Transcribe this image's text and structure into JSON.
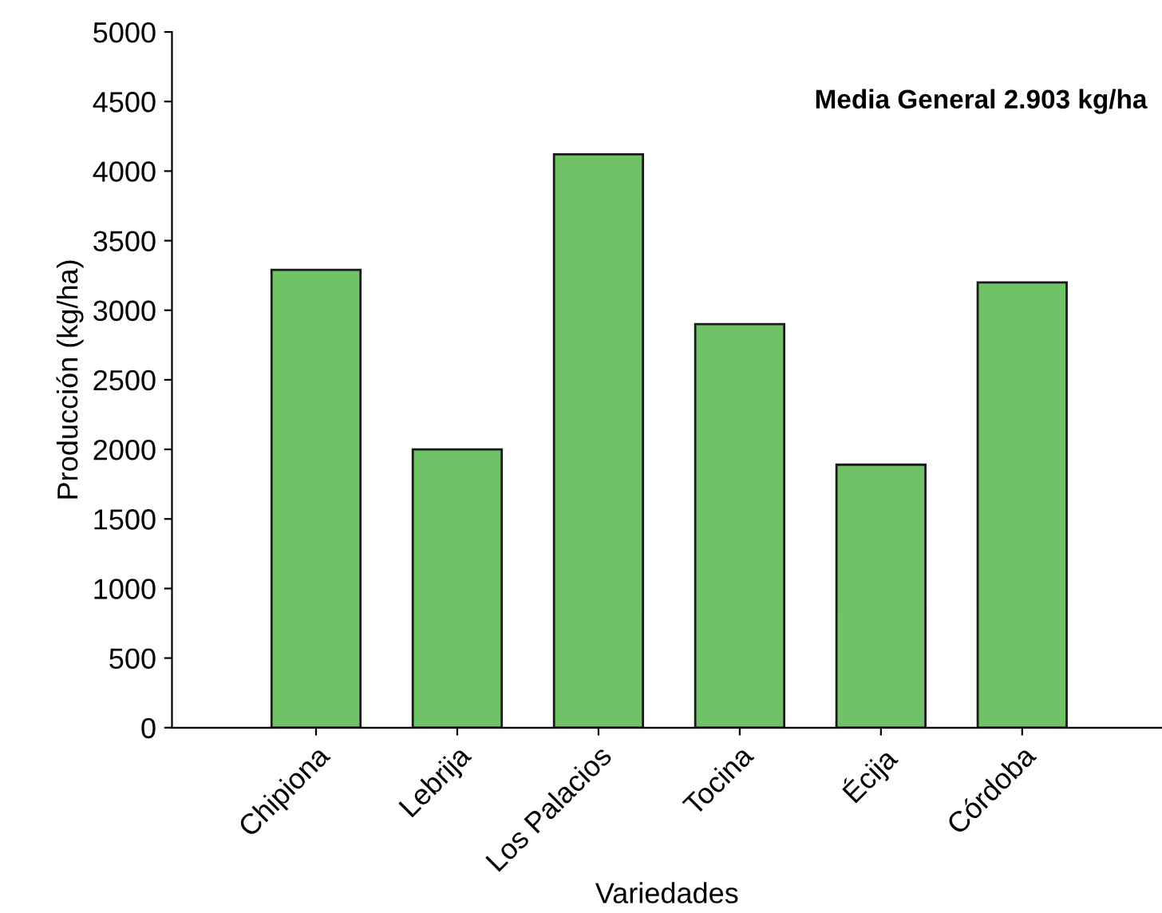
{
  "chart_data": {
    "type": "bar",
    "xlabel": "Variedades",
    "ylabel": "Producción (kg/ha)",
    "annotations": [
      "Media General 2.903 kg/ha"
    ],
    "categories": [
      "Chipiona",
      "Lebrija",
      "Los Palacios",
      "Tocina",
      "Écija",
      "Córdoba"
    ],
    "values": [
      3290,
      2000,
      4120,
      2900,
      1890,
      3200
    ],
    "color": "#70c267",
    "ylim": [
      0,
      5000
    ],
    "yticks": [
      0,
      500,
      1000,
      1500,
      2000,
      2500,
      3000,
      3500,
      4000,
      4500,
      5000
    ],
    "grid": false,
    "legend": false
  }
}
